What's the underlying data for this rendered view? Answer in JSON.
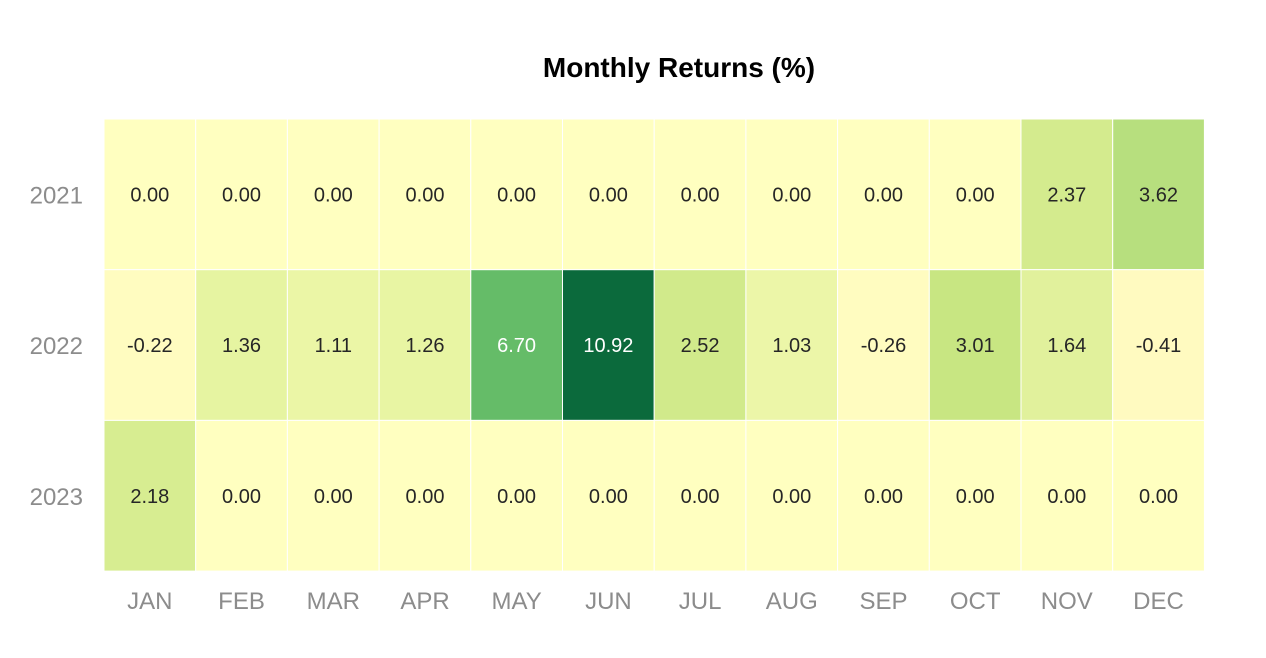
{
  "chart_data": {
    "type": "heatmap",
    "title": "Monthly Returns (%)",
    "xlabel": "",
    "ylabel": "",
    "x_categories": [
      "JAN",
      "FEB",
      "MAR",
      "APR",
      "MAY",
      "JUN",
      "JUL",
      "AUG",
      "SEP",
      "OCT",
      "NOV",
      "DEC"
    ],
    "y_categories": [
      "2021",
      "2022",
      "2023"
    ],
    "values": [
      [
        0.0,
        0.0,
        0.0,
        0.0,
        0.0,
        0.0,
        0.0,
        0.0,
        0.0,
        0.0,
        2.37,
        3.62
      ],
      [
        -0.22,
        1.36,
        1.11,
        1.26,
        6.7,
        10.92,
        2.52,
        1.03,
        -0.26,
        3.01,
        1.64,
        -0.41
      ],
      [
        2.18,
        0.0,
        0.0,
        0.0,
        0.0,
        0.0,
        0.0,
        0.0,
        0.0,
        0.0,
        0.0,
        0.0
      ]
    ],
    "value_format_decimals": 2,
    "colormap": "yellow-to-green",
    "color_stops": [
      "#fff9c0",
      "#ffffc0",
      "#e9f5a4",
      "#c8e682",
      "#65bc68",
      "#0b6a3c"
    ],
    "grid": false,
    "legend": "none"
  }
}
